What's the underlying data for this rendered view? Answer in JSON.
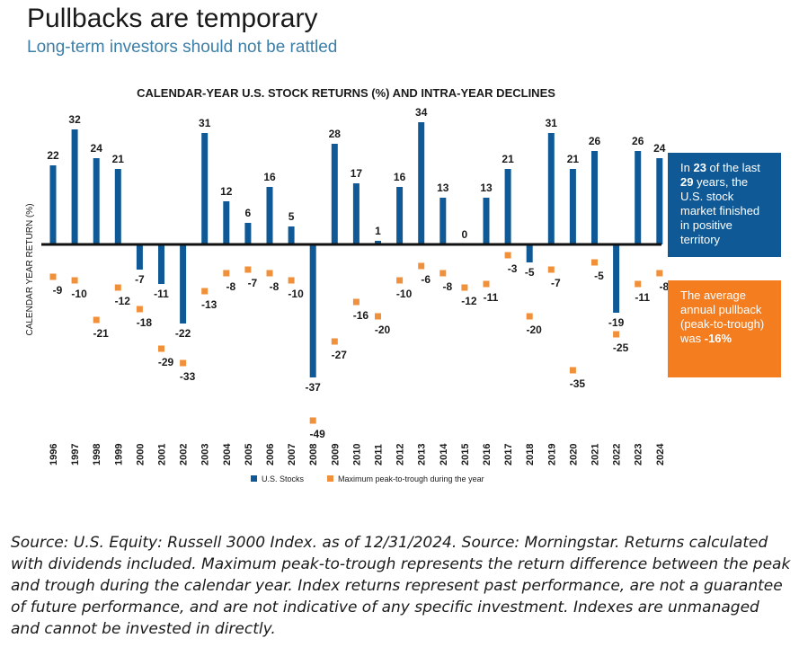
{
  "header": {
    "title": "Pullbacks are temporary",
    "subtitle": "Long-term investors should not be rattled"
  },
  "chart_data": {
    "type": "bar",
    "title": "CALENDAR-YEAR U.S. STOCK RETURNS (%) AND INTRA-YEAR DECLINES",
    "ylabel": "CALENDAR YEAR RETURN (%)",
    "xlabel": "",
    "categories": [
      "1996",
      "1997",
      "1998",
      "1999",
      "2000",
      "2001",
      "2002",
      "2003",
      "2004",
      "2005",
      "2006",
      "2007",
      "2008",
      "2009",
      "2010",
      "2011",
      "2012",
      "2013",
      "2014",
      "2015",
      "2016",
      "2017",
      "2018",
      "2019",
      "2020",
      "2021",
      "2022",
      "2023",
      "2024"
    ],
    "series": [
      {
        "name": "U.S. Stocks",
        "type": "bar",
        "color": "#0f5a96",
        "values": [
          22,
          32,
          24,
          21,
          -7,
          -11,
          -22,
          31,
          12,
          6,
          16,
          5,
          -37,
          28,
          17,
          1,
          16,
          34,
          13,
          0,
          13,
          21,
          -5,
          31,
          21,
          26,
          -19,
          26,
          24
        ]
      },
      {
        "name": "Maximum peak-to-trough during the year",
        "type": "marker",
        "color": "#f0903a",
        "values": [
          -9,
          -10,
          -21,
          -12,
          -18,
          -29,
          -33,
          -13,
          -8,
          -7,
          -8,
          -10,
          -49,
          -27,
          -16,
          -20,
          -10,
          -6,
          -8,
          -12,
          -11,
          -3,
          -20,
          -7,
          -35,
          -5,
          -25,
          -11,
          -8
        ]
      }
    ],
    "ylim": [
      -52,
      36
    ],
    "grid": false,
    "legend": "bottom"
  },
  "callouts": {
    "blue": {
      "p1": "In ",
      "b1": "23",
      "p2": " of the last ",
      "b2": "29",
      "p3": " years, the U.S. stock market finished in positive territory"
    },
    "orange": {
      "p1": "The average annual pullback (peak-to-trough) was ",
      "b1": "-16%"
    }
  },
  "footer": {
    "source": "Source: U.S. Equity: Russell 3000 Index. as of 12/31/2024. Source: Morningstar. Returns calculated with dividends included. Maximum peak-to-trough represents the return difference between the peak and trough during the calendar year. Index returns represent past performance, are not a guarantee of future performance, and are not indicative of any specific investment. Indexes are unmanaged and cannot be invested in directly."
  }
}
